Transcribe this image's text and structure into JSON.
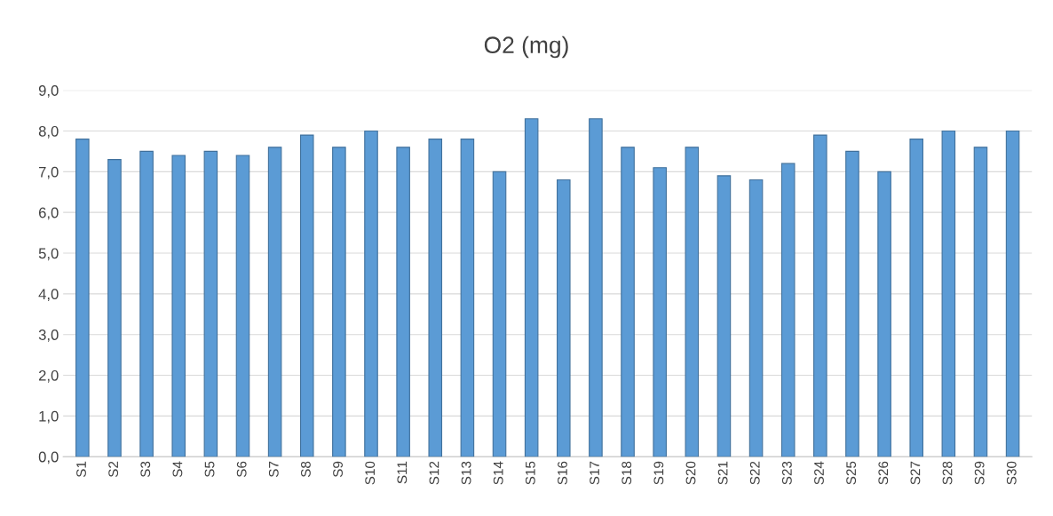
{
  "chart_data": {
    "type": "bar",
    "title": "O2 (mg)",
    "categories": [
      "S1",
      "S2",
      "S3",
      "S4",
      "S5",
      "S6",
      "S7",
      "S8",
      "S9",
      "S10",
      "S11",
      "S12",
      "S13",
      "S14",
      "S15",
      "S16",
      "S17",
      "S18",
      "S19",
      "S20",
      "S21",
      "S22",
      "S23",
      "S24",
      "S25",
      "S26",
      "S27",
      "S28",
      "S29",
      "S30"
    ],
    "values": [
      7.8,
      7.3,
      7.5,
      7.4,
      7.5,
      7.4,
      7.6,
      7.9,
      7.6,
      8.0,
      7.6,
      7.8,
      7.8,
      7.0,
      8.3,
      6.8,
      8.3,
      7.6,
      7.1,
      7.6,
      6.9,
      6.8,
      7.2,
      7.9,
      7.5,
      7.0,
      7.8,
      8.0,
      7.6,
      8.0
    ],
    "color": "#5b9bd5",
    "ylim": [
      0,
      9
    ],
    "yticks": [
      {
        "value": 0,
        "label": "0,0"
      },
      {
        "value": 1,
        "label": "1,0"
      },
      {
        "value": 2,
        "label": "2,0"
      },
      {
        "value": 3,
        "label": "3,0"
      },
      {
        "value": 4,
        "label": "4,0"
      },
      {
        "value": 5,
        "label": "5,0"
      },
      {
        "value": 6,
        "label": "6,0"
      },
      {
        "value": 7,
        "label": "7,0"
      },
      {
        "value": 8,
        "label": "8,0"
      },
      {
        "value": 9,
        "label": "9,0"
      }
    ],
    "grid": "y"
  }
}
